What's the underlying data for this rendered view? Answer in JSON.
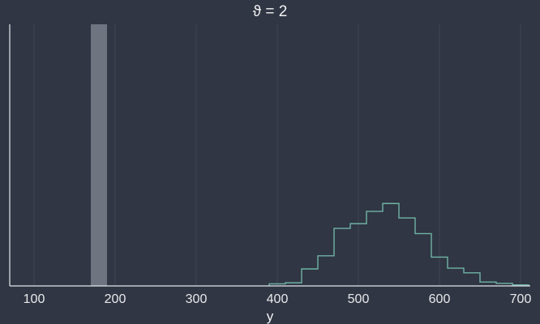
{
  "chart_data": {
    "type": "histogram",
    "title": "ϑ = 2",
    "xlabel": "y",
    "ylabel": "",
    "xlim": [
      70,
      712
    ],
    "ylim": [
      0,
      1
    ],
    "xticks": [
      100,
      200,
      300,
      400,
      500,
      600,
      700
    ],
    "grid": true,
    "colors": {
      "background": "#303643",
      "highlight_bar": "#6f7481",
      "histogram_line": "#6fb3a6",
      "axis": "#e4e6ea",
      "grid": "#4a5060"
    },
    "highlight_bar": {
      "x_start": 170,
      "x_end": 190,
      "height": 1.0
    },
    "histogram": {
      "bin_edges": [
        390,
        410,
        430,
        450,
        470,
        490,
        510,
        530,
        550,
        570,
        590,
        610,
        630,
        650,
        670,
        690,
        710
      ],
      "heights": [
        0.008,
        0.012,
        0.065,
        0.115,
        0.22,
        0.238,
        0.285,
        0.315,
        0.26,
        0.2,
        0.11,
        0.068,
        0.05,
        0.015,
        0.01,
        0.004
      ]
    }
  }
}
